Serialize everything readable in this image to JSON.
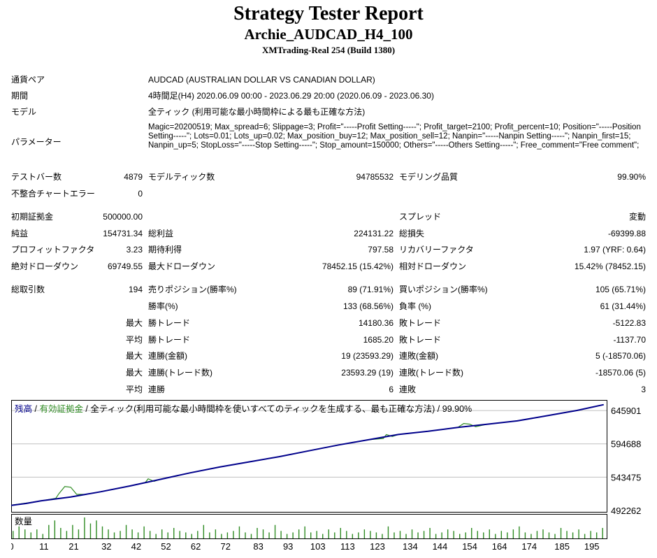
{
  "header": {
    "title": "Strategy Tester Report",
    "expert": "Archie_AUDCAD_H4_100",
    "server": "XMTrading-Real 254 (Build 1380)"
  },
  "info": {
    "symbol_label": "通貨ペア",
    "symbol_value": "AUDCAD (AUSTRALIAN DOLLAR VS CANADIAN DOLLAR)",
    "period_label": "期間",
    "period_value": "4時間足(H4) 2020.06.09 00:00 - 2023.06.29 20:00 (2020.06.09 - 2023.06.30)",
    "model_label": "モデル",
    "model_value": "全ティック (利用可能な最小時間枠による最も正確な方法)",
    "params_label": "パラメーター",
    "params_value": "Magic=20200519; Max_spread=6; Slippage=3; Profit=\"-----Profit Setting-----\"; Profit_target=2100; Profit_percent=10; Position=\"-----Position Setting-----\"; Lots=0.01; Lots_up=0.02; Max_position_buy=12; Max_position_sell=12; Nanpin=\"-----Nanpin Setting-----\"; Nanpin_first=15; Nanpin_up=5; StopLoss=\"-----Stop Setting-----\"; Stop_amount=150000; Others=\"-----Others Setting-----\"; Free_comment=\"Free comment\";"
  },
  "stats": {
    "bars_label": "テストバー数",
    "bars_value": "4879",
    "ticks_label": "モデルティック数",
    "ticks_value": "94785532",
    "quality_label": "モデリング品質",
    "quality_value": "99.90%",
    "mismatch_label": "不整合チャートエラー",
    "mismatch_value": "0",
    "deposit_label": "初期証拠金",
    "deposit_value": "500000.00",
    "spread_label": "スプレッド",
    "spread_value": "変動",
    "netprofit_label": "純益",
    "netprofit_value": "154731.34",
    "grossprofit_label": "総利益",
    "grossprofit_value": "224131.22",
    "grossloss_label": "総損失",
    "grossloss_value": "-69399.88",
    "pf_label": "プロフィットファクタ",
    "pf_value": "3.23",
    "expected_label": "期待利得",
    "expected_value": "797.58",
    "recovery_label": "リカバリーファクタ",
    "recovery_value": "1.97 (YRF: 0.64)",
    "absdd_label": "絶対ドローダウン",
    "absdd_value": "69749.55",
    "maxdd_label": "最大ドローダウン",
    "maxdd_value": "78452.15 (15.42%)",
    "reldd_label": "相対ドローダウン",
    "reldd_value": "15.42% (78452.15)",
    "trades_label": "総取引数",
    "trades_value": "194",
    "short_label": "売りポジション(勝率%)",
    "short_value": "89 (71.91%)",
    "long_label": "買いポジション(勝率%)",
    "long_value": "105 (65.71%)",
    "winrate_label": "勝率(%)",
    "winrate_value": "133 (68.56%)",
    "lossrate_label": "負率 (%)",
    "lossrate_value": "61 (31.44%)",
    "max": "最大",
    "avg": "平均",
    "largest_win_label": "勝トレード",
    "largest_win_value": "14180.36",
    "largest_loss_label": "敗トレード",
    "largest_loss_value": "-5122.83",
    "avg_win_label": "勝トレード",
    "avg_win_value": "1685.20",
    "avg_loss_label": "敗トレード",
    "avg_loss_value": "-1137.70",
    "max_consec_win_label": "連勝(金額)",
    "max_consec_win_value": "19 (23593.29)",
    "max_consec_loss_label": "連敗(金額)",
    "max_consec_loss_value": "5 (-18570.06)",
    "max_consec_profit_label": "連勝(トレード数)",
    "max_consec_profit_value": "23593.29 (19)",
    "max_consec_lossamt_label": "連敗(トレード数)",
    "max_consec_lossamt_value": "-18570.06 (5)",
    "avg_consec_win_label": "連勝",
    "avg_consec_win_value": "6",
    "avg_consec_loss_label": "連敗",
    "avg_consec_loss_value": "3"
  },
  "chart_data": {
    "type": "line",
    "legend_balance": "残高",
    "legend_sep1": " / ",
    "legend_equity": "有効証拠金",
    "legend_sep2": " / ",
    "legend_rest": "全ティック(利用可能な最小時間枠を使いすべてのティックを生成する、最も正確な方法) / 99.90%",
    "volume_label": "数量",
    "y_ticks": [
      "645901",
      "594688",
      "543475",
      "492262"
    ],
    "x_ticks": [
      "0",
      "11",
      "21",
      "32",
      "42",
      "52",
      "62",
      "72",
      "83",
      "93",
      "103",
      "113",
      "123",
      "134",
      "144",
      "154",
      "164",
      "174",
      "185",
      "195"
    ],
    "ylim": [
      492262,
      660000
    ],
    "xlim": [
      0,
      200
    ],
    "colors": {
      "balance": "#00008b",
      "equity": "#2e8b22",
      "grid": "#c0c0c0",
      "volume": "#2e8b22"
    },
    "series": [
      {
        "name": "残高",
        "x": [
          0,
          5,
          10,
          15,
          20,
          25,
          30,
          40,
          50,
          60,
          70,
          80,
          90,
          100,
          110,
          120,
          130,
          140,
          150,
          160,
          170,
          180,
          190,
          195,
          199
        ],
        "y": [
          500000,
          503000,
          507000,
          510000,
          513000,
          517000,
          521000,
          530000,
          540000,
          550000,
          559000,
          567000,
          575000,
          584000,
          593000,
          601000,
          609000,
          614000,
          620000,
          625000,
          630000,
          638000,
          646000,
          651000,
          655000
        ]
      },
      {
        "name": "有効証拠金",
        "x": [
          0,
          5,
          10,
          15,
          16,
          18,
          20,
          22,
          25,
          30,
          40,
          45,
          46,
          48,
          50,
          60,
          70,
          80,
          90,
          100,
          110,
          120,
          125,
          126,
          128,
          130,
          140,
          150,
          152,
          154,
          156,
          160,
          170,
          180,
          190,
          195,
          199
        ],
        "y": [
          500500,
          503500,
          507000,
          511000,
          518000,
          529000,
          528000,
          517000,
          517000,
          521000,
          530000,
          535000,
          541000,
          537000,
          540000,
          550000,
          559000,
          567000,
          575000,
          584000,
          593000,
          601000,
          603000,
          609000,
          606000,
          609000,
          614000,
          620000,
          626000,
          625000,
          621000,
          625000,
          630000,
          638000,
          646000,
          651000,
          655000
        ]
      }
    ],
    "volume": [
      5,
      8,
      6,
      4,
      6,
      3,
      9,
      12,
      7,
      5,
      9,
      6,
      14,
      10,
      12,
      8,
      6,
      4,
      5,
      9,
      6,
      4,
      8,
      5,
      3,
      6,
      4,
      7,
      5,
      4,
      3,
      5,
      9,
      4,
      6,
      3,
      4,
      5,
      8,
      4,
      3,
      7,
      6,
      4,
      9,
      5,
      3,
      4,
      6,
      8,
      4,
      5,
      3,
      6,
      4,
      7,
      5,
      3,
      4,
      6,
      5,
      4,
      3,
      8,
      4,
      5,
      3,
      6,
      4,
      5,
      7,
      3,
      4,
      6,
      5,
      3,
      4,
      7,
      5,
      4,
      6,
      3,
      5,
      4,
      6,
      8,
      4,
      3,
      5,
      6,
      4,
      3,
      7,
      5,
      4,
      6,
      3,
      5,
      4,
      7
    ]
  }
}
